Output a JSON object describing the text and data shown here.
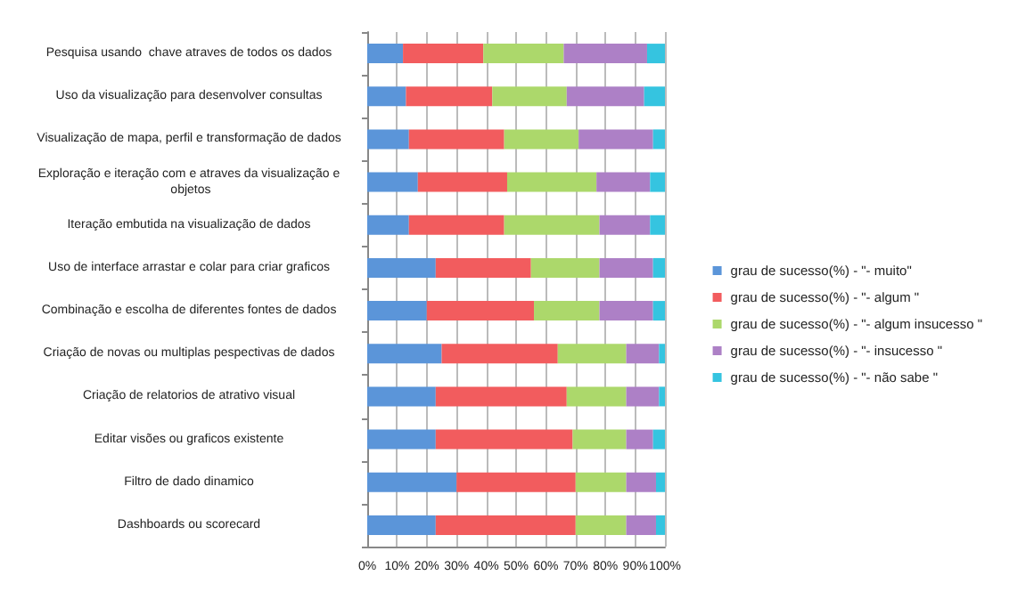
{
  "chart_data": {
    "type": "bar",
    "orientation": "horizontal",
    "stacked": true,
    "categories": [
      "Pesquisa usando  chave atraves de todos os dados",
      "Uso da visualização para desenvolver consultas",
      "Visualização de mapa, perfil e transformação de dados",
      "Exploração e iteração com e atraves da visualização e objetos",
      "Iteração embutida na visualização de dados",
      "Uso de interface arrastar e colar para criar graficos",
      "Combinação e escolha de diferentes fontes de dados",
      "Criação de novas ou multiplas pespectivas de dados",
      "Criação de relatorios de atrativo visual",
      "Editar visões ou graficos existente",
      "Filtro de dado dinamico",
      "Dashboards ou scorecard"
    ],
    "series": [
      {
        "name": "grau de sucesso(%) - \"- muito\"",
        "color": "#5b95d9",
        "values": [
          12,
          13,
          14,
          17,
          14,
          23,
          20,
          25,
          23,
          23,
          30,
          23
        ]
      },
      {
        "name": "grau de sucesso(%) - \"- algum \"",
        "color": "#f25c5e",
        "values": [
          27,
          29,
          32,
          30,
          32,
          32,
          36,
          39,
          44,
          46,
          40,
          47
        ]
      },
      {
        "name": "grau de sucesso(%) - \"- algum insucesso \"",
        "color": "#acd86b",
        "values": [
          27,
          25,
          25,
          30,
          32,
          23,
          22,
          23,
          20,
          18,
          17,
          17
        ]
      },
      {
        "name": "grau de sucesso(%) - \"- insucesso \"",
        "color": "#ad80c6",
        "values": [
          28,
          26,
          25,
          18,
          17,
          18,
          18,
          11,
          11,
          9,
          10,
          10
        ]
      },
      {
        "name": "grau de sucesso(%) - \"- não sabe \"",
        "color": "#35c4e0",
        "values": [
          6,
          7,
          4,
          5,
          5,
          4,
          4,
          2,
          2,
          4,
          3,
          3
        ]
      }
    ],
    "xlim": [
      0,
      100
    ],
    "xticks": [
      {
        "value": 0,
        "label": "0%"
      },
      {
        "value": 10,
        "label": "10%"
      },
      {
        "value": 20,
        "label": "20%"
      },
      {
        "value": 30,
        "label": "30%"
      },
      {
        "value": 40,
        "label": "40%"
      },
      {
        "value": 50,
        "label": "50%"
      },
      {
        "value": 60,
        "label": "60%"
      },
      {
        "value": 70,
        "label": "70%"
      },
      {
        "value": 80,
        "label": "80%"
      },
      {
        "value": 90,
        "label": "90%"
      },
      {
        "value": 100,
        "label": "100%"
      }
    ],
    "grid": "x",
    "legend": "right"
  }
}
